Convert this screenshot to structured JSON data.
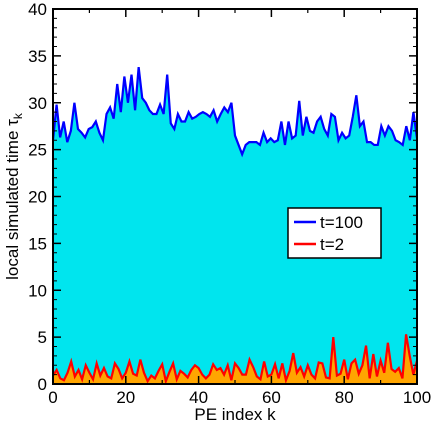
{
  "chart_data": {
    "type": "area",
    "xlabel": "PE index k",
    "ylabel_main": "local simulated time τ",
    "ylabel_sub": "k",
    "xlim": [
      0,
      100
    ],
    "ylim": [
      0,
      40
    ],
    "xticks": [
      0,
      20,
      40,
      60,
      80,
      100
    ],
    "yticks": [
      0,
      5,
      10,
      15,
      20,
      25,
      30,
      35,
      40
    ],
    "legend_position": "right-middle",
    "series": [
      {
        "name": "t=100",
        "color": "#0000ff",
        "fill": "#00e5ee",
        "values": [
          26.0,
          29.8,
          26.3,
          28.0,
          25.8,
          27.0,
          30.0,
          27.2,
          26.8,
          26.3,
          27.2,
          27.4,
          28.0,
          26.8,
          26.0,
          28.8,
          29.5,
          28.3,
          32.0,
          29.0,
          32.8,
          30.0,
          33.0,
          29.2,
          33.8,
          30.5,
          30.0,
          29.2,
          28.8,
          28.8,
          29.8,
          28.8,
          33.0,
          27.8,
          27.2,
          28.8,
          28.0,
          28.0,
          29.0,
          28.3,
          28.5,
          28.8,
          29.0,
          28.8,
          28.5,
          29.2,
          28.0,
          28.8,
          29.5,
          29.0,
          30.0,
          26.5,
          25.5,
          24.5,
          25.5,
          25.8,
          25.8,
          25.8,
          25.5,
          26.8,
          25.8,
          26.2,
          25.8,
          26.0,
          28.0,
          25.5,
          28.0,
          26.2,
          26.5,
          30.2,
          26.5,
          28.5,
          27.0,
          26.8,
          28.0,
          28.5,
          27.2,
          26.5,
          28.8,
          28.5,
          26.0,
          26.8,
          26.2,
          26.5,
          28.5,
          30.8,
          27.5,
          28.0,
          25.8,
          25.8,
          25.5,
          25.5,
          27.5,
          26.5,
          27.5,
          27.0,
          26.0,
          25.8,
          25.5,
          27.5,
          26.0,
          29.0,
          26.2
        ],
        "x_step_note": ""
      },
      {
        "name": "t=2",
        "color": "#ff0000",
        "fill": "#ffa500",
        "values": [
          0.9,
          1.5,
          0.6,
          0.4,
          1.2,
          2.4,
          0.8,
          1.5,
          0.5,
          2.0,
          1.2,
          0.5,
          2.2,
          0.9,
          1.7,
          0.8,
          0.6,
          2.2,
          1.6,
          0.6,
          1.2,
          2.4,
          1.1,
          0.9,
          2.6,
          1.2,
          0.3,
          0.9,
          0.6,
          1.4,
          2.1,
          0.3,
          1.3,
          2.2,
          0.5,
          1.4,
          1.1,
          0.7,
          1.5,
          2.0,
          1.7,
          1.0,
          0.6,
          1.0,
          2.1,
          1.5,
          1.7,
          1.0,
          2.0,
          0.4,
          2.2,
          1.7,
          1.0,
          1.0,
          2.6,
          1.8,
          0.8,
          0.5,
          2.4,
          0.8,
          1.0,
          2.1,
          0.6,
          2.2,
          0.4,
          1.4,
          3.3,
          1.2,
          1.8,
          0.8,
          2.0,
          1.0,
          0.6,
          2.3,
          2.2,
          0.7,
          0.6,
          5.0,
          0.9,
          1.1,
          2.6,
          0.5,
          2.2,
          2.6,
          1.1,
          2.0,
          4.1,
          0.6,
          3.2,
          0.8,
          2.5,
          1.2,
          4.4,
          1.6,
          1.3,
          1.7,
          0.6,
          5.3,
          3.0,
          1.0,
          2.5
        ]
      }
    ]
  }
}
